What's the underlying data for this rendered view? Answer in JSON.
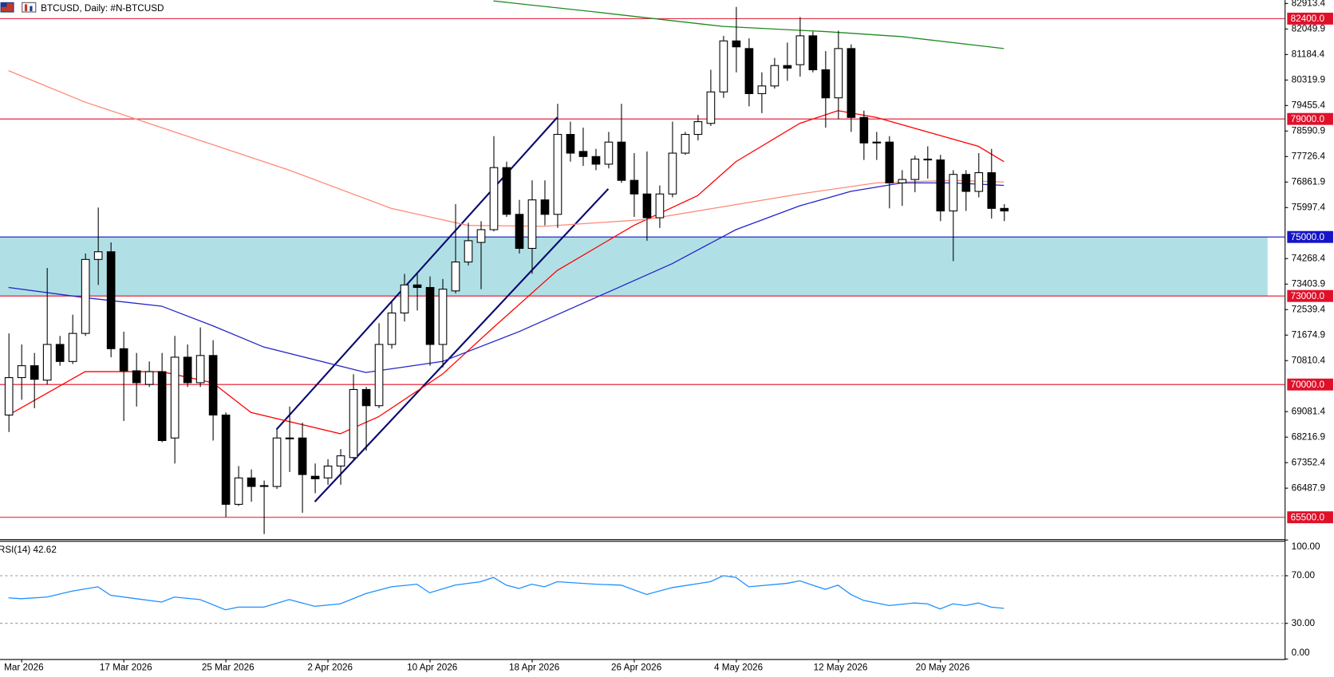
{
  "chart_data": [
    {
      "type": "candlestick",
      "title": "BTCUSD, Daily:  #N-BTCUSD",
      "categories": [
        null,
        "Mar 2026",
        null,
        null,
        null,
        null,
        null,
        null,
        null,
        "17 Mar 2026",
        null,
        null,
        null,
        null,
        null,
        null,
        null,
        "25 Mar 2026",
        null,
        null,
        null,
        null,
        null,
        null,
        null,
        "2 Apr 2026",
        null,
        null,
        null,
        null,
        null,
        null,
        null,
        "10 Apr 2026",
        null,
        null,
        null,
        null,
        null,
        null,
        null,
        "18 Apr 2026",
        null,
        null,
        null,
        null,
        null,
        null,
        null,
        "26 Apr 2026",
        null,
        null,
        null,
        null,
        null,
        null,
        null,
        "4 May 2026",
        null,
        null,
        null,
        null,
        null,
        null,
        null,
        "12 May 2026",
        null,
        null,
        null,
        null,
        null,
        null,
        null,
        "20 May 2026",
        null,
        null,
        null,
        null,
        null
      ],
      "open": [
        68966,
        70234,
        70637,
        70148,
        71358,
        70781,
        71732,
        74239,
        74499,
        71214,
        70465,
        70003,
        70436,
        68188,
        70926,
        70061,
        70983,
        68966,
        65940,
        66834,
        66574,
        66545,
        68188,
        68188,
        66891,
        66834,
        67237,
        67525,
        69831,
        69283,
        71358,
        72424,
        73375,
        73289,
        71358,
        73173,
        74153,
        74816,
        75248,
        77352,
        75767,
        74614,
        76257,
        75767,
        78476,
        77899,
        77726,
        77467,
        78216,
        76919,
        76458,
        75652,
        76458,
        77842,
        78476,
        78850,
        79916,
        81645,
        81386,
        79859,
        80118,
        80810,
        80839,
        81818,
        80666,
        79715,
        81386,
        79052,
        78216,
        78216,
        76833,
        76948,
        77640,
        77611,
        75882,
        77121,
        76545,
        77179,
        75969
      ],
      "high": [
        71732,
        71358,
        71070,
        73951,
        71646,
        72366,
        74441,
        75997,
        74816,
        71790,
        71070,
        70781,
        71070,
        71646,
        71358,
        71934,
        71502,
        69052,
        67237,
        67122,
        66747,
        68476,
        69254,
        68707,
        67323,
        67468,
        67813,
        70349,
        69917,
        72078,
        72799,
        73750,
        73750,
        73663,
        73577,
        76113,
        75479,
        75536,
        78418,
        77553,
        76257,
        76919,
        76919,
        79513,
        78908,
        78706,
        77986,
        78562,
        79513,
        77842,
        77899,
        76747,
        78908,
        78562,
        79138,
        80666,
        81818,
        82798,
        81732,
        80579,
        81069,
        81588,
        82452,
        81962,
        81300,
        81991,
        81530,
        79282,
        78562,
        78418,
        77265,
        77755,
        78072,
        77784,
        77265,
        77265,
        77842,
        77986,
        76113
      ],
      "low": [
        68390,
        69485,
        69197,
        70003,
        70637,
        70695,
        71646,
        73375,
        70926,
        68764,
        69254,
        69917,
        68044,
        67323,
        69917,
        69917,
        68101,
        65508,
        65883,
        66027,
        64932,
        66459,
        67035,
        65652,
        66315,
        66603,
        66603,
        67468,
        67756,
        69197,
        71214,
        72136,
        72510,
        70637,
        70580,
        73087,
        74038,
        73231,
        75190,
        75680,
        74441,
        73750,
        75392,
        75306,
        77553,
        77409,
        77265,
        77323,
        76833,
        75680,
        74873,
        75306,
        76343,
        77784,
        78274,
        78764,
        79715,
        80579,
        79427,
        79196,
        80032,
        80291,
        80435,
        80579,
        78706,
        78994,
        78562,
        77611,
        77611,
        75969,
        76055,
        76516,
        76977,
        75536,
        74182,
        75882,
        76343,
        75623,
        75536
      ],
      "close": [
        70234,
        70637,
        70176,
        71358,
        70781,
        71732,
        74239,
        74499,
        71214,
        70465,
        70061,
        70436,
        68101,
        70926,
        70061,
        70983,
        68966,
        65940,
        66834,
        66545,
        66545,
        68188,
        68159,
        66949,
        66805,
        67237,
        67583,
        69831,
        69283,
        71358,
        72424,
        73375,
        73289,
        71358,
        73231,
        74153,
        74873,
        75248,
        77352,
        75767,
        74614,
        76257,
        75767,
        78476,
        77842,
        77726,
        77467,
        78216,
        76919,
        76458,
        75652,
        76458,
        77842,
        78476,
        78908,
        79916,
        81645,
        81444,
        79859,
        80118,
        80810,
        80723,
        81818,
        80666,
        79715,
        81386,
        79052,
        78187,
        78187,
        76833,
        76948,
        77640,
        77611,
        75882,
        77121,
        76545,
        77179,
        75969,
        75882
      ],
      "up_color": "#ffffff",
      "down_color": "#000000",
      "series": [
        {
          "color": "#ff0000",
          "x": [
            0,
            6,
            12,
            16,
            19,
            26,
            29,
            34,
            38,
            43,
            49,
            54,
            57,
            62,
            65,
            68,
            72,
            76,
            78
          ],
          "values": [
            68966,
            70436,
            70436,
            70061,
            69052,
            68332,
            68908,
            70349,
            71934,
            73865,
            75392,
            76401,
            77553,
            78850,
            79282,
            79052,
            78562,
            78072,
            77553
          ]
        },
        {
          "color": "#2323c8",
          "x": [
            0,
            6,
            12,
            16,
            20,
            28,
            34,
            40,
            46,
            52,
            57,
            62,
            66,
            70,
            74,
            78
          ],
          "values": [
            73289,
            72943,
            72655,
            71992,
            71271,
            70407,
            70781,
            71790,
            72943,
            74095,
            75248,
            76055,
            76545,
            76833,
            76833,
            76747
          ]
        },
        {
          "color": "#ff8a78",
          "x": [
            0,
            6,
            14,
            22,
            30,
            36,
            42,
            50,
            56,
            62,
            68,
            74,
            78
          ],
          "values": [
            80637,
            79571,
            78418,
            77265,
            75969,
            75392,
            75363,
            75594,
            76026,
            76458,
            76833,
            76919,
            76862
          ]
        },
        {
          "color": "#1f8a1f",
          "x": [
            38,
            46,
            56,
            64,
            70,
            78
          ],
          "values": [
            83000,
            82625,
            82135,
            81962,
            81790,
            81386
          ]
        }
      ],
      "levels": [
        {
          "value": 82400,
          "label": "82400.0",
          "color": "#e0102a"
        },
        {
          "value": 79000,
          "label": "79000.0",
          "color": "#e0102a"
        },
        {
          "value": 75000,
          "label": "75000.0",
          "color": "#1515c8"
        },
        {
          "value": 73000,
          "label": "73000.0",
          "color": "#e0102a"
        },
        {
          "value": 70000,
          "label": "70000.0",
          "color": "#e0102a"
        },
        {
          "value": 65500,
          "label": "65500.0",
          "color": "#e0102a"
        }
      ],
      "zone": {
        "from": 73000,
        "to": 75000,
        "color": "#b0e0e6"
      },
      "ylim": [
        64758.7,
        83028.7
      ],
      "yticks": [
        82913.4,
        82049.9,
        81184.4,
        80319.9,
        79455.4,
        78590.9,
        77726.4,
        76861.9,
        75997.4,
        74268.4,
        73403.9,
        72539.4,
        71674.9,
        70810.4,
        69081.4,
        68216.9,
        67352.4,
        66487.9
      ]
    },
    {
      "type": "line",
      "title": "RSI(14) 42.62",
      "color": "#1e90ff",
      "x": [
        0,
        1,
        3,
        5,
        7,
        8,
        10,
        12,
        13,
        15,
        17,
        18,
        20,
        22,
        24,
        26,
        28,
        30,
        32,
        33,
        35,
        37,
        38,
        39,
        40,
        41,
        42,
        43,
        46,
        48,
        50,
        52,
        55,
        56,
        57,
        58,
        61,
        62,
        64,
        65,
        66,
        67,
        69,
        71,
        72,
        73,
        74,
        75,
        76,
        77,
        78
      ],
      "values": [
        51.4,
        50.7,
        52.1,
        57.1,
        60.7,
        53.6,
        50.7,
        47.9,
        52.1,
        50.0,
        41.4,
        43.6,
        43.6,
        50.0,
        44.3,
        46.4,
        55.0,
        60.7,
        62.9,
        55.7,
        62.1,
        65.0,
        68.6,
        62.1,
        59.3,
        62.9,
        60.7,
        65.0,
        62.9,
        62.1,
        54.3,
        60.0,
        65.0,
        70.0,
        68.6,
        60.7,
        63.6,
        65.7,
        58.6,
        62.1,
        54.3,
        49.3,
        45.0,
        47.1,
        46.4,
        42.1,
        46.4,
        45.0,
        47.1,
        43.6,
        42.62
      ],
      "ylim": [
        0,
        100
      ],
      "yticks": [
        {
          "value": 100,
          "label": "100.00"
        },
        {
          "value": 70,
          "label": "70.00"
        },
        {
          "value": 30,
          "label": "30.00"
        },
        {
          "value": 0,
          "label": "0.00"
        }
      ]
    }
  ]
}
